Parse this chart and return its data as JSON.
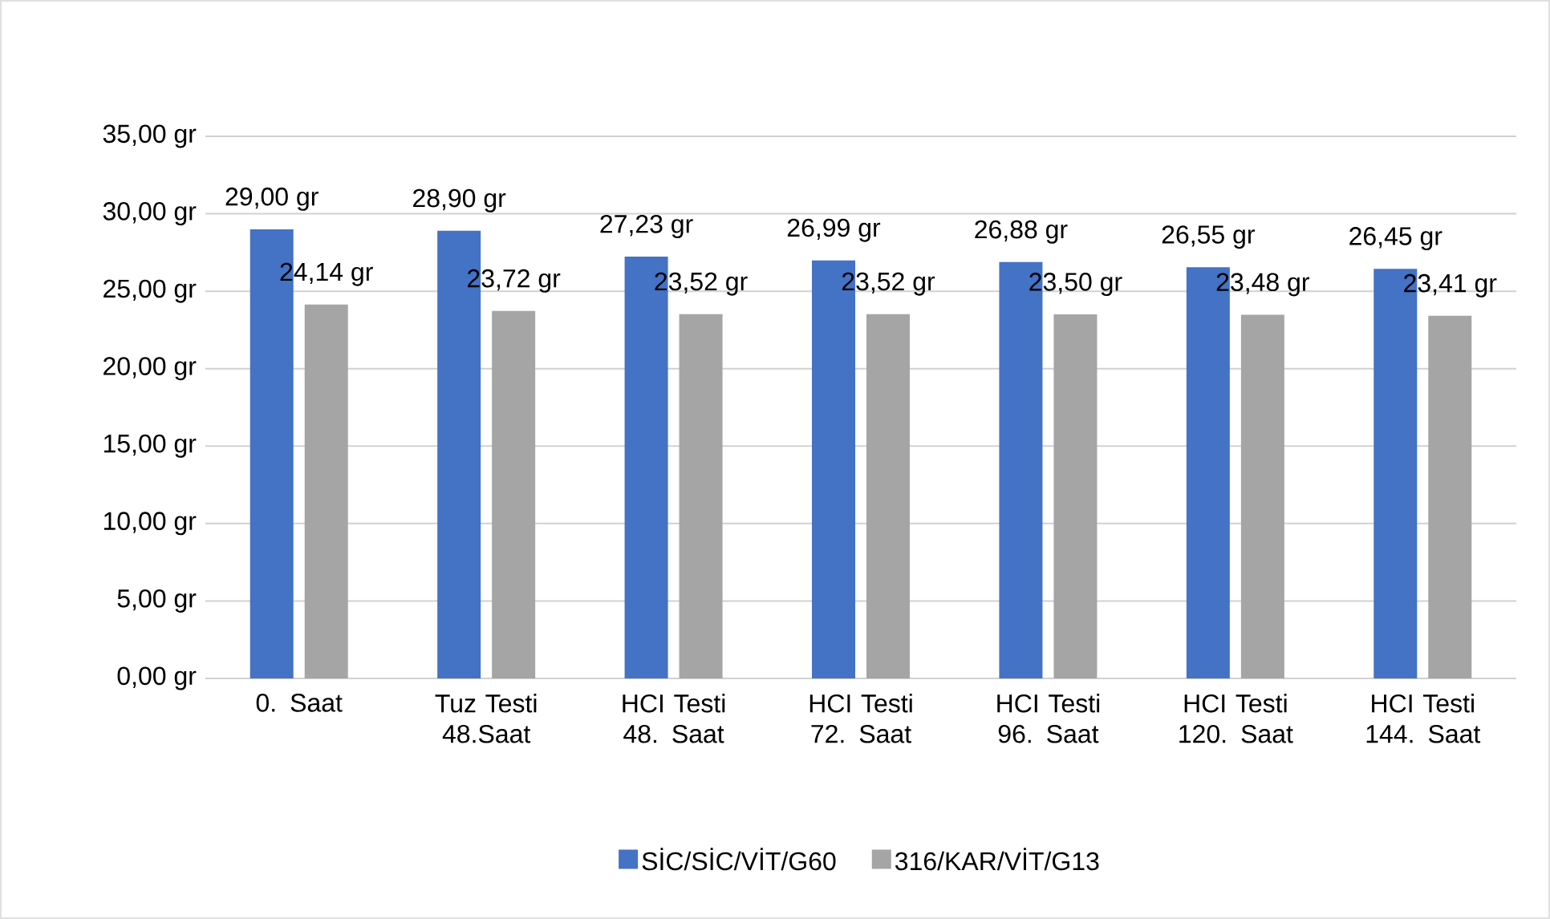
{
  "chart_data": {
    "type": "bar",
    "categories": [
      "0. Saat",
      "Tuz Testi 48.Saat",
      "HCI Testi 48. Saat",
      "HCI Testi 72. Saat",
      "HCI Testi 96. Saat",
      "HCI Testi 120. Saat",
      "HCI Testi 144. Saat"
    ],
    "series": [
      {
        "name": "SİC/SİC/VİT/G60",
        "color": "#4472c4",
        "values": [
          29.0,
          28.9,
          27.23,
          26.99,
          26.88,
          26.55,
          26.45
        ],
        "value_labels": [
          "29,00 gr",
          "28,90 gr",
          "27,23 gr",
          "26,99 gr",
          "26,88 gr",
          "26,55 gr",
          "26,45 gr"
        ]
      },
      {
        "name": "316/KAR/VİT/G13",
        "color": "#a5a5a5",
        "values": [
          24.14,
          23.72,
          23.52,
          23.52,
          23.5,
          23.48,
          23.41
        ],
        "value_labels": [
          "24,14 gr",
          "23,72 gr",
          "23,52 gr",
          "23,52 gr",
          "23,50 gr",
          "23,48 gr",
          "23,41 gr"
        ]
      }
    ],
    "ylim": [
      0,
      35
    ],
    "yticks": [
      {
        "value": 0,
        "label": "0,00 gr"
      },
      {
        "value": 5,
        "label": "5,00 gr"
      },
      {
        "value": 10,
        "label": "10,00 gr"
      },
      {
        "value": 15,
        "label": "15,00 gr"
      },
      {
        "value": 20,
        "label": "20,00 gr"
      },
      {
        "value": 25,
        "label": "25,00 gr"
      },
      {
        "value": 30,
        "label": "30,00 gr"
      },
      {
        "value": 35,
        "label": "35,00 gr"
      }
    ],
    "grid": "y",
    "legend": "bottom"
  }
}
